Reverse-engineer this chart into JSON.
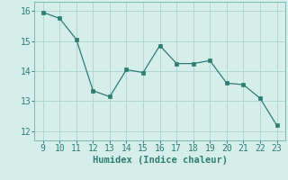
{
  "x": [
    9,
    10,
    11,
    12,
    13,
    14,
    15,
    16,
    17,
    18,
    19,
    20,
    21,
    22,
    23
  ],
  "y": [
    15.95,
    15.75,
    15.05,
    13.35,
    13.15,
    14.05,
    13.95,
    14.85,
    14.25,
    14.25,
    14.35,
    13.6,
    13.55,
    13.1,
    12.2
  ],
  "line_color": "#2e7d72",
  "marker": "s",
  "marker_color": "#2e7d72",
  "bg_color": "#d6eeea",
  "grid_color": "#b0d8d0",
  "xlabel": "Humidex (Indice chaleur)",
  "xlabel_fontsize": 7.5,
  "tick_fontsize": 7,
  "xlim": [
    8.5,
    23.5
  ],
  "ylim": [
    11.7,
    16.3
  ],
  "xticks": [
    9,
    10,
    11,
    12,
    13,
    14,
    15,
    16,
    17,
    18,
    19,
    20,
    21,
    22,
    23
  ],
  "yticks": [
    12,
    13,
    14,
    15,
    16
  ]
}
